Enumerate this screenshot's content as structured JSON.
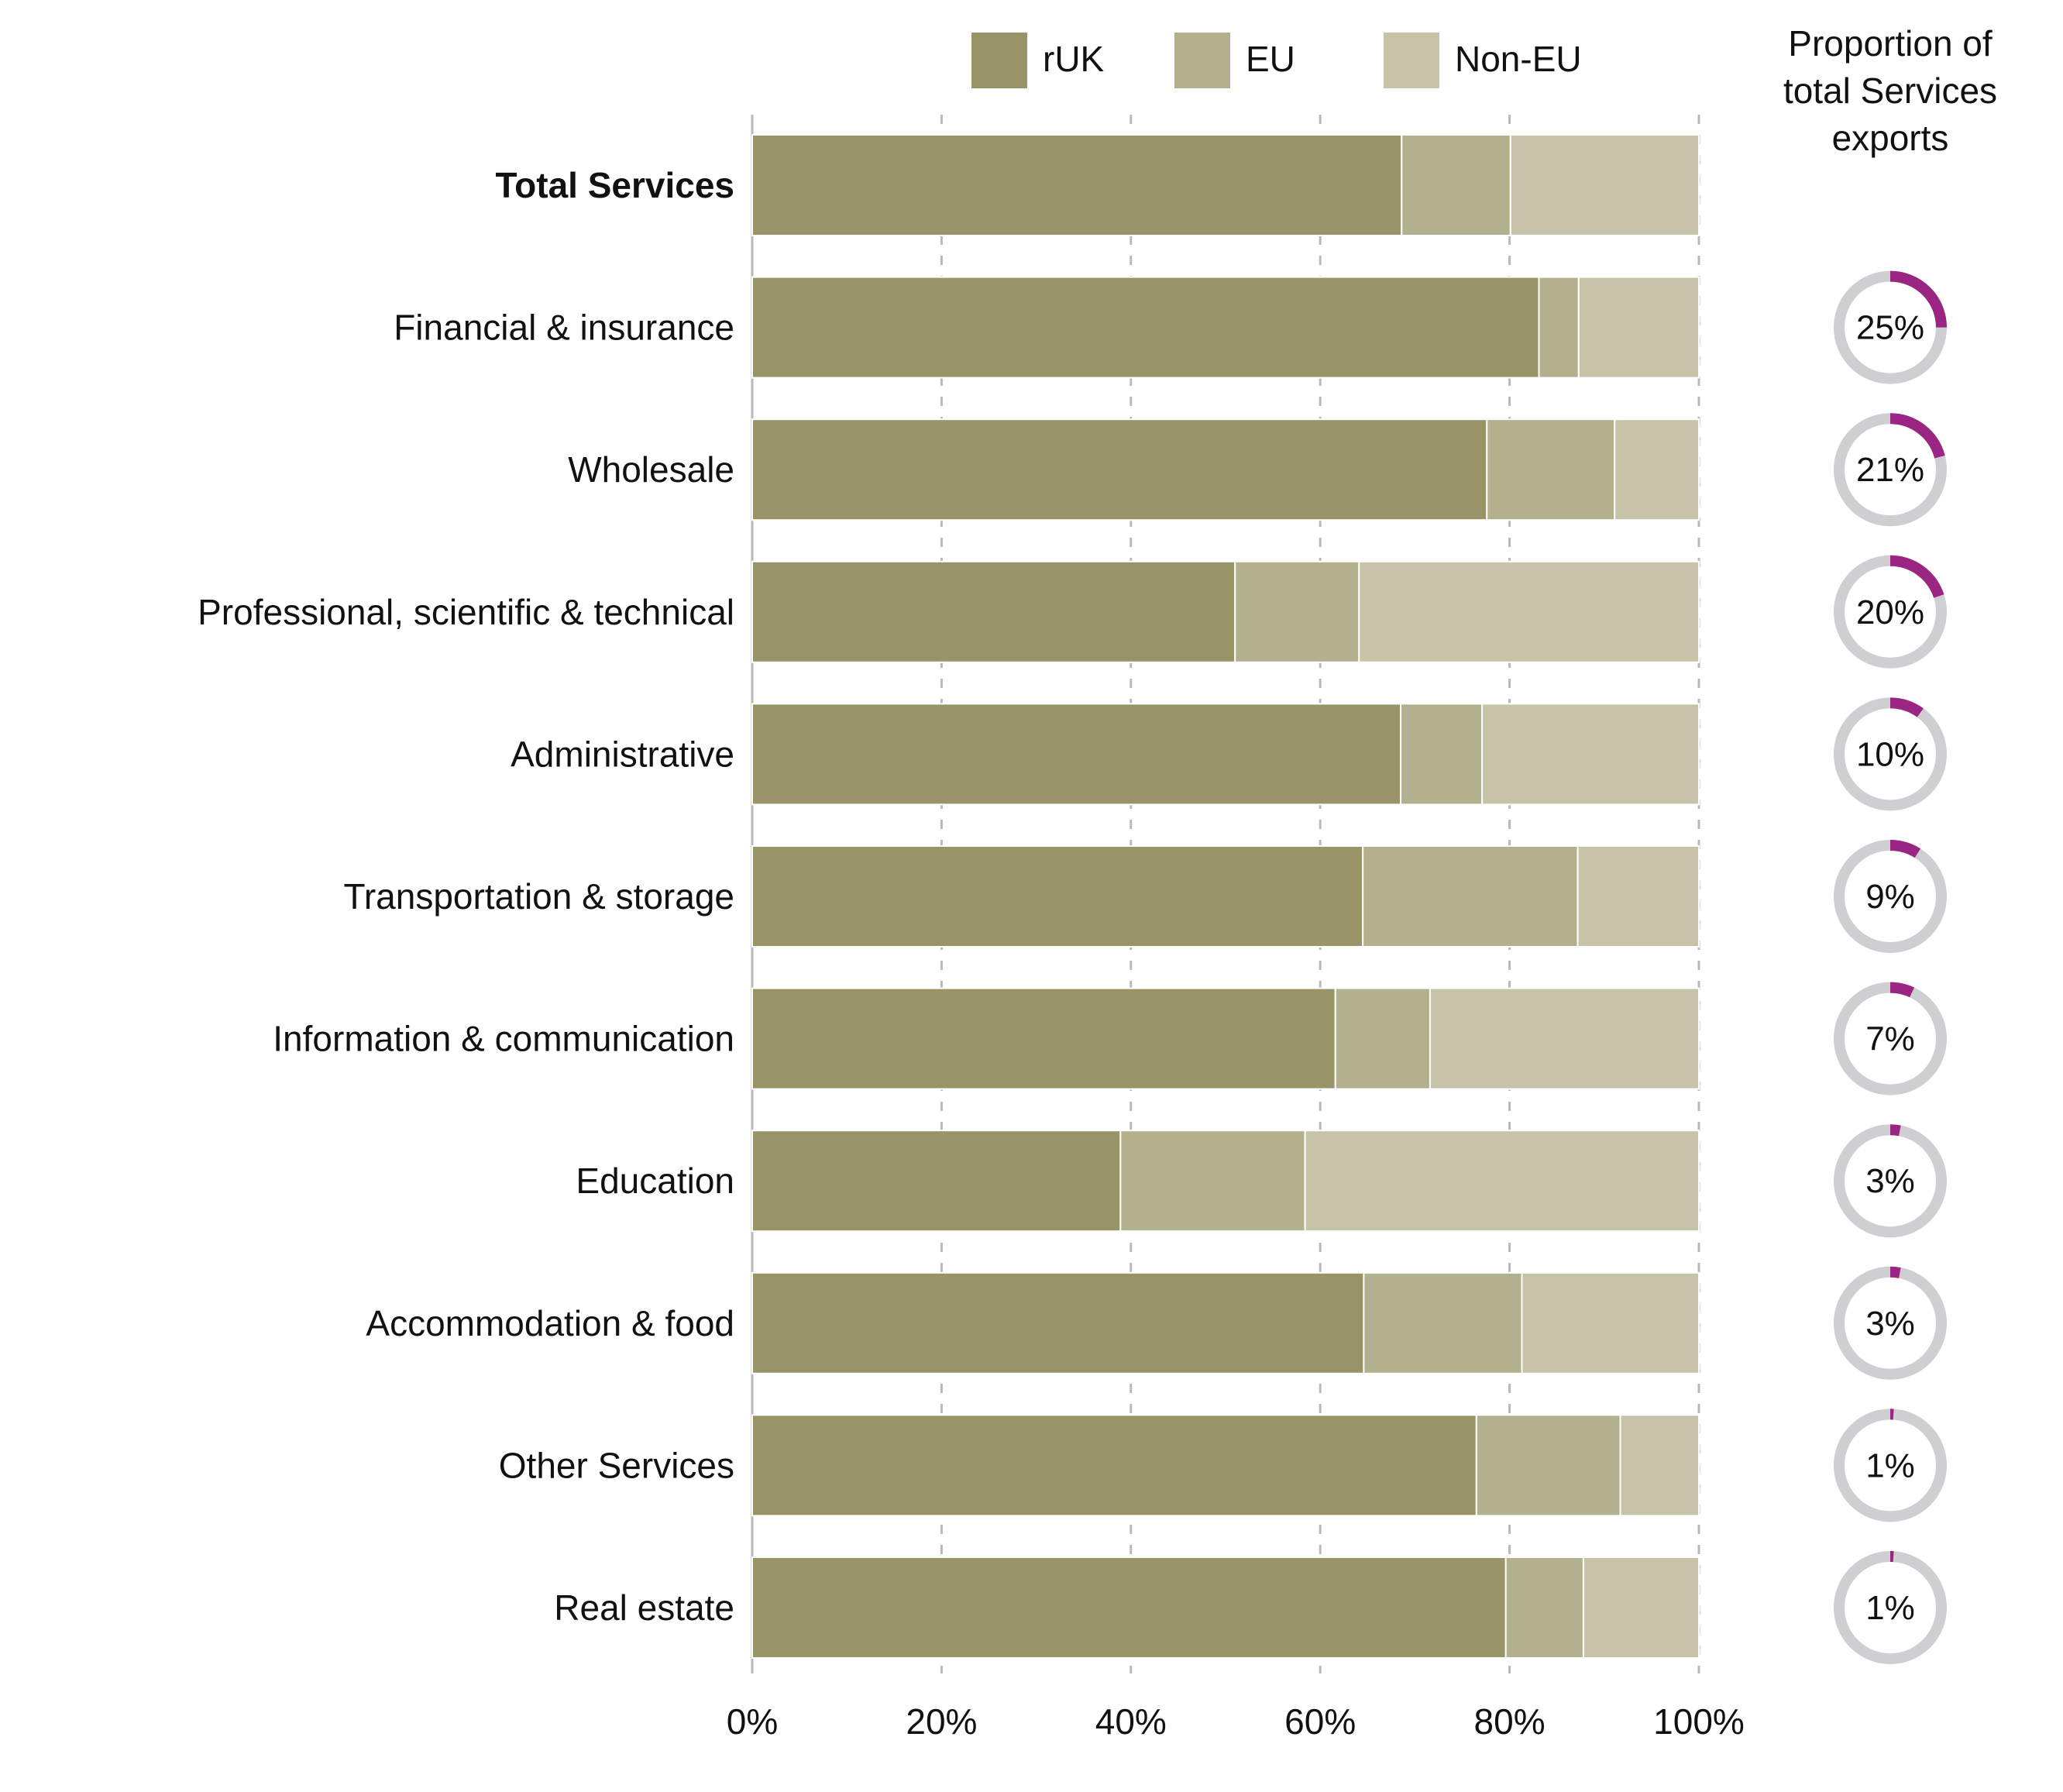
{
  "chart_data": {
    "type": "bar",
    "orientation": "horizontal",
    "stacked": true,
    "percent_scale": true,
    "categories": [
      "Total Services",
      "Financial & insurance",
      "Wholesale",
      "Professional, scientific & technical",
      "Administrative",
      "Transportation & storage",
      "Information & communication",
      "Education",
      "Accommodation & food ",
      "Other Services",
      "Real estate"
    ],
    "bold_categories": [
      "Total Services"
    ],
    "series": [
      {
        "name": "rUK",
        "color": "#989468",
        "values": [
          68.6,
          83.1,
          77.6,
          51.0,
          68.5,
          64.5,
          61.6,
          38.9,
          64.6,
          76.5,
          79.6
        ]
      },
      {
        "name": "EU",
        "color": "#b3b08d",
        "values": [
          11.5,
          4.2,
          13.5,
          13.1,
          8.6,
          22.7,
          10.0,
          19.5,
          16.7,
          15.2,
          8.2
        ]
      },
      {
        "name": "Non-EU",
        "color": "#c6c3a8",
        "values": [
          19.9,
          12.7,
          8.9,
          35.9,
          22.9,
          12.8,
          28.4,
          41.6,
          18.7,
          8.3,
          12.2
        ]
      }
    ],
    "xlim": [
      0,
      100
    ],
    "x_ticks": [
      "0%",
      "20%",
      "40%",
      "60%",
      "80%",
      "100%"
    ],
    "grid": "vertical dashed",
    "legend_position": "top",
    "proportion_panel": {
      "title_lines": [
        "Proportion of",
        "total Services",
        "exports"
      ],
      "values": [
        null,
        25,
        21,
        20,
        10,
        9,
        7,
        3,
        3,
        1,
        1
      ],
      "labels": [
        "",
        "25%",
        "21%",
        "20%",
        "10%",
        "9%",
        "7%",
        "3%",
        "3%",
        "1%",
        "1%"
      ],
      "ring_color": "#cfcfd1",
      "highlight_color": "#9b2583"
    }
  }
}
